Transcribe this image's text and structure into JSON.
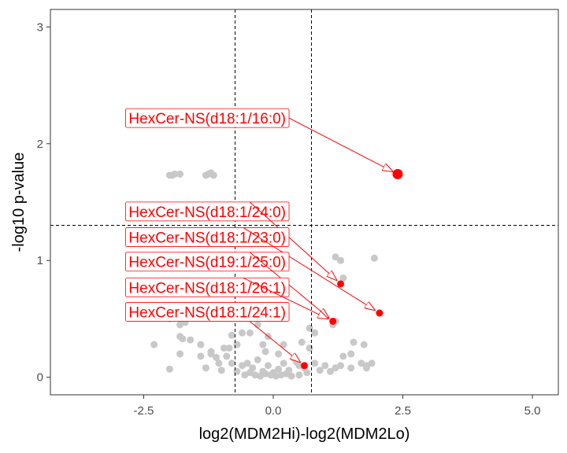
{
  "chart_data": {
    "type": "scatter",
    "title": "",
    "xlabel": "log2(MDM2Hi)-log2(MDM2Lo)",
    "ylabel": "-log10 p-value",
    "xlim": [
      -4.3,
      5.5
    ],
    "ylim": [
      -0.15,
      3.15
    ],
    "xticks": [
      -2.5,
      0.0,
      2.5,
      5.0
    ],
    "xtick_labels": [
      "-2.5",
      "0.0",
      "2.5",
      "5.0"
    ],
    "yticks": [
      0,
      1,
      2,
      3
    ],
    "ytick_labels": [
      "0",
      "1",
      "2",
      "3"
    ],
    "vlines": [
      -0.737,
      0.737
    ],
    "hline": 1.301,
    "grid": false,
    "colors": {
      "background_points": "#c8c8c8",
      "highlight": "#ff0000",
      "reference_lines": "#000000"
    },
    "background_points": [
      [
        -1.9,
        1.74
      ],
      [
        -1.95,
        1.73
      ],
      [
        -2.0,
        1.73
      ],
      [
        -1.8,
        1.74
      ],
      [
        -1.25,
        1.74
      ],
      [
        -1.2,
        1.75
      ],
      [
        -1.3,
        1.73
      ],
      [
        -1.15,
        1.73
      ],
      [
        -2.3,
        0.28
      ],
      [
        -2.0,
        0.5
      ],
      [
        -1.9,
        0.55
      ],
      [
        -1.8,
        0.45
      ],
      [
        -1.7,
        0.47
      ],
      [
        -1.8,
        0.35
      ],
      [
        -1.75,
        0.33
      ],
      [
        -1.6,
        0.32
      ],
      [
        -1.8,
        0.2
      ],
      [
        -2.0,
        0.07
      ],
      [
        -1.3,
        0.08
      ],
      [
        -1.4,
        0.18
      ],
      [
        -1.2,
        0.2
      ],
      [
        -1.1,
        0.17
      ],
      [
        -1.3,
        0.08
      ],
      [
        -1.0,
        0.06
      ],
      [
        -1.05,
        0.12
      ],
      [
        -0.9,
        0.18
      ],
      [
        -0.95,
        0.25
      ],
      [
        -0.85,
        0.25
      ],
      [
        -0.8,
        0.36
      ],
      [
        -0.7,
        0.28
      ],
      [
        -0.6,
        0.38
      ],
      [
        -0.5,
        0.55
      ],
      [
        -0.3,
        0.45
      ],
      [
        -0.45,
        0.38
      ],
      [
        -0.2,
        0.28
      ],
      [
        -0.4,
        0.08
      ],
      [
        -0.5,
        0.12
      ],
      [
        -0.3,
        0.15
      ],
      [
        -0.2,
        0.05
      ],
      [
        -0.1,
        0.1
      ],
      [
        0.0,
        0.04
      ],
      [
        0.1,
        0.07
      ],
      [
        0.2,
        0.12
      ],
      [
        0.3,
        0.06
      ],
      [
        0.4,
        0.16
      ],
      [
        0.45,
        0.13
      ],
      [
        0.5,
        0.1
      ],
      [
        0.6,
        0.08
      ],
      [
        -0.6,
        0.1
      ],
      [
        -0.7,
        0.05
      ],
      [
        -0.8,
        0.12
      ],
      [
        -0.55,
        0.02
      ],
      [
        -0.45,
        0.04
      ],
      [
        -0.35,
        0.02
      ],
      [
        -0.25,
        0.01
      ],
      [
        -0.15,
        0.03
      ],
      [
        -0.05,
        0.02
      ],
      [
        0.05,
        0.01
      ],
      [
        0.15,
        0.02
      ],
      [
        0.25,
        0.03
      ],
      [
        0.35,
        0.01
      ],
      [
        0.5,
        0.02
      ],
      [
        0.65,
        0.04
      ],
      [
        0.55,
        0.3
      ],
      [
        0.7,
        0.42
      ],
      [
        0.8,
        0.38
      ],
      [
        0.7,
        0.25
      ],
      [
        0.8,
        0.12
      ],
      [
        0.9,
        0.06
      ],
      [
        1.0,
        0.1
      ],
      [
        1.1,
        0.05
      ],
      [
        1.2,
        0.08
      ],
      [
        1.3,
        0.1
      ],
      [
        1.35,
        0.18
      ],
      [
        1.5,
        0.2
      ],
      [
        1.5,
        0.08
      ],
      [
        1.7,
        0.12
      ],
      [
        1.8,
        0.1
      ],
      [
        1.55,
        0.3
      ],
      [
        1.75,
        0.28
      ],
      [
        1.8,
        0.08
      ],
      [
        1.9,
        0.12
      ],
      [
        0.2,
        0.28
      ],
      [
        0.1,
        0.2
      ],
      [
        -0.15,
        0.22
      ],
      [
        1.15,
        0.45
      ],
      [
        1.2,
        0.48
      ],
      [
        1.2,
        1.03
      ],
      [
        1.3,
        1.0
      ],
      [
        1.95,
        1.02
      ],
      [
        1.35,
        0.85
      ],
      [
        -1.2,
        0.22
      ],
      [
        -1.4,
        0.28
      ],
      [
        -0.1,
        0.35
      ]
    ],
    "highlight_points": [
      {
        "x": 2.4,
        "y": 1.74,
        "large": true
      },
      {
        "x": 1.3,
        "y": 0.8,
        "large": false
      },
      {
        "x": 2.05,
        "y": 0.55,
        "large": false
      },
      {
        "x": 1.15,
        "y": 0.48,
        "large": false
      },
      {
        "x": 0.6,
        "y": 0.1,
        "large": false
      }
    ],
    "annotations": [
      {
        "label": "HexCer-NS(d18:1/16:0)",
        "box_x": -2.85,
        "box_y": 2.22,
        "target_x": 2.4,
        "target_y": 1.74
      },
      {
        "label": "HexCer-NS(d18:1/24:0)",
        "box_x": -2.85,
        "box_y": 1.42,
        "target_x": 1.3,
        "target_y": 0.8
      },
      {
        "label": "HexCer-NS(d18:1/23:0)",
        "box_x": -2.85,
        "box_y": 1.2,
        "target_x": 2.05,
        "target_y": 0.55
      },
      {
        "label": "HexCer-NS(d19:1/25:0)",
        "box_x": -2.85,
        "box_y": 0.99,
        "target_x": 1.15,
        "target_y": 0.48
      },
      {
        "label": "HexCer-NS(d18:1/26:1)",
        "box_x": -2.85,
        "box_y": 0.77,
        "target_x": 1.15,
        "target_y": 0.48
      },
      {
        "label": "HexCer-NS(d18:1/24:1)",
        "box_x": -2.85,
        "box_y": 0.56,
        "target_x": 0.6,
        "target_y": 0.1
      }
    ]
  }
}
